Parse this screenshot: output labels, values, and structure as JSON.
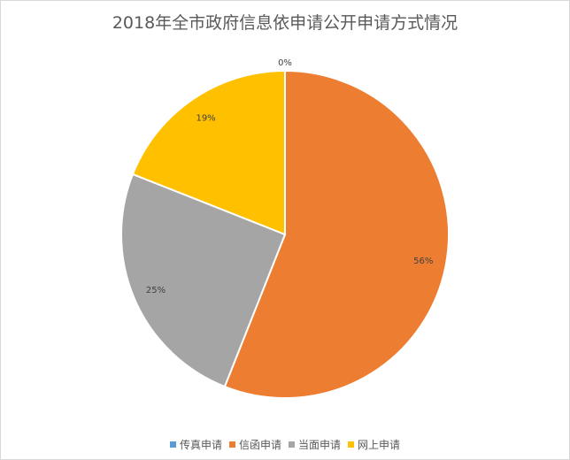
{
  "chart_data": {
    "type": "pie",
    "title": "2018年全市政府信息依申请公开申请方式情况",
    "categories": [
      "传真申请",
      "信函申请",
      "当面申请",
      "网上申请"
    ],
    "values": [
      0,
      56,
      25,
      19
    ],
    "data_labels": [
      "0%",
      "56%",
      "25%",
      "19%"
    ],
    "colors": [
      "#5B9BD5",
      "#ED7D31",
      "#A5A5A5",
      "#FFC000"
    ],
    "start_angle_deg": 0,
    "direction": "clockwise",
    "legend_position": "bottom"
  }
}
